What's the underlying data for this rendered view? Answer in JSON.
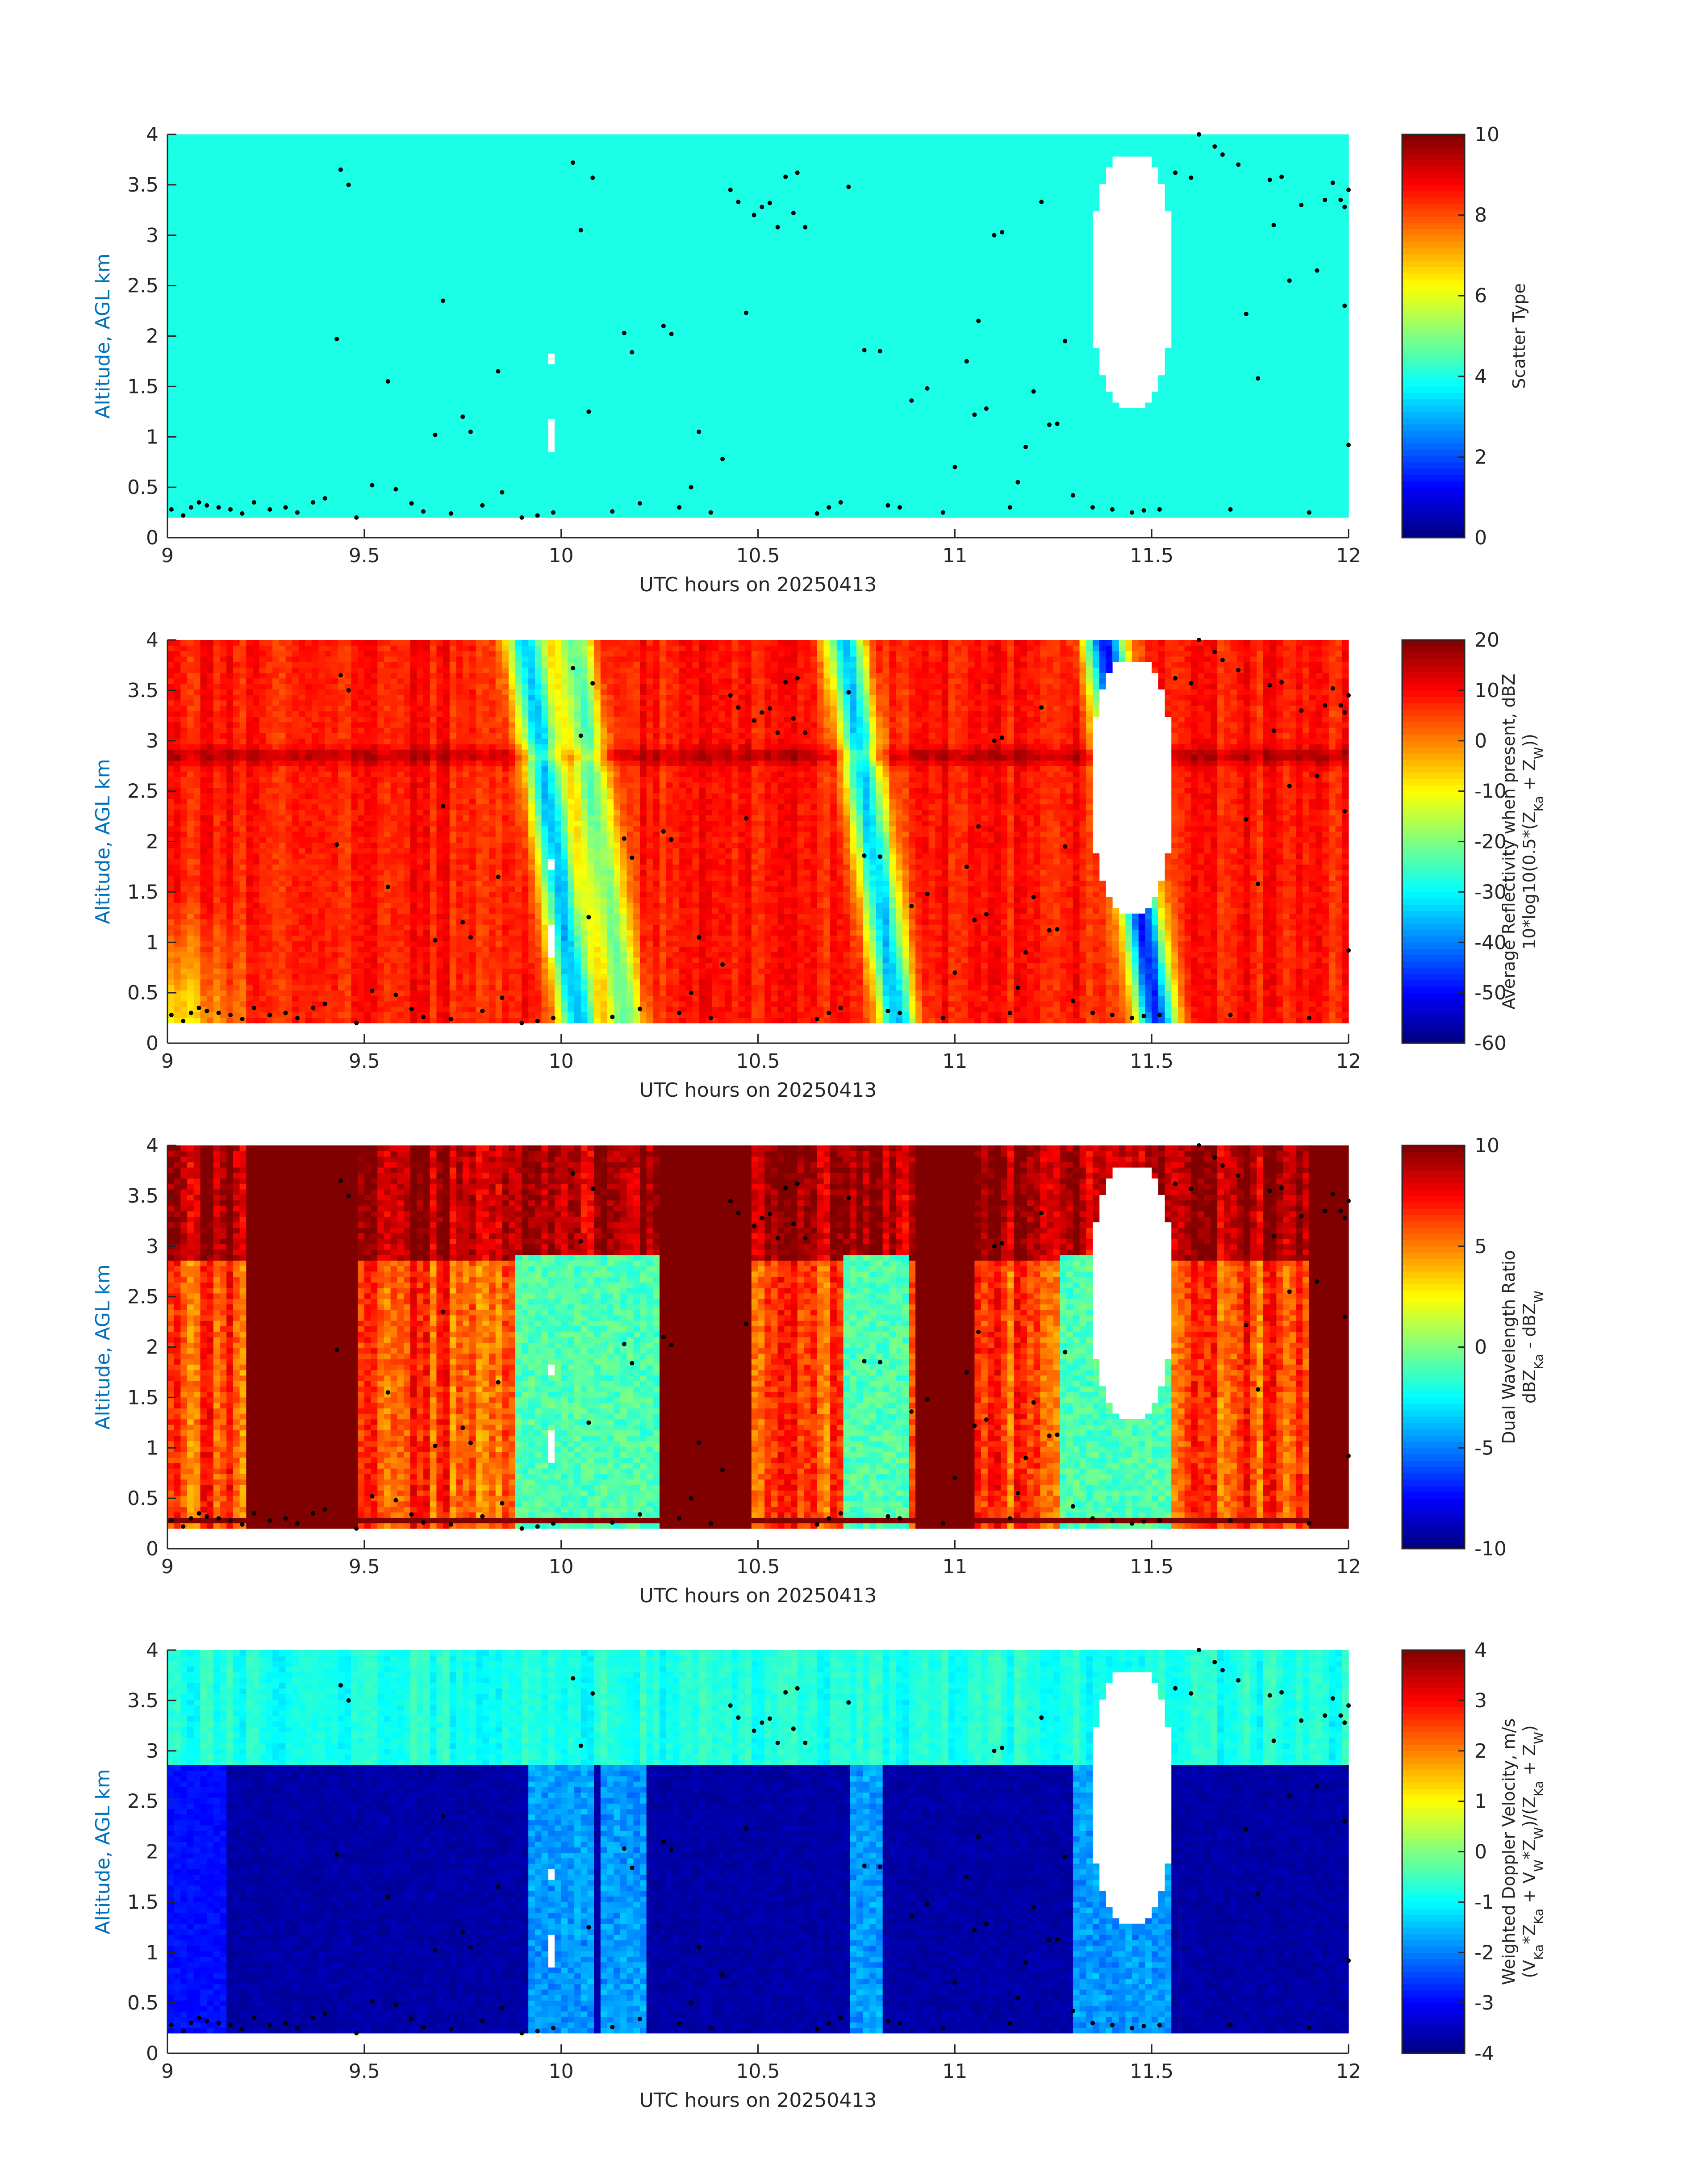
{
  "chart_data": [
    {
      "type": "heatmap",
      "panel": "scatter-type",
      "xlabel": "UTC hours on 20250413",
      "ylabel": "Altitude, AGL km",
      "x_ticks": [
        "9",
        "9.5",
        "10",
        "10.5",
        "11",
        "11.5",
        "12"
      ],
      "y_ticks": [
        "0",
        "0.5",
        "1",
        "1.5",
        "2",
        "2.5",
        "3",
        "3.5",
        "4"
      ],
      "xlim": [
        9,
        12
      ],
      "ylim": [
        0,
        4
      ],
      "colorbar": {
        "label_lines": [
          "Scatter Type"
        ],
        "ticks": [
          "0",
          "2",
          "4",
          "6",
          "8",
          "10"
        ],
        "range": [
          0,
          10
        ],
        "colormap": "jet"
      },
      "dominant_value": 4.0
    },
    {
      "type": "heatmap",
      "panel": "average-reflectivity",
      "xlabel": "UTC hours on 20250413",
      "ylabel": "Altitude, AGL km",
      "x_ticks": [
        "9",
        "9.5",
        "10",
        "10.5",
        "11",
        "11.5",
        "12"
      ],
      "y_ticks": [
        "0",
        "0.5",
        "1",
        "1.5",
        "2",
        "2.5",
        "3",
        "3.5",
        "4"
      ],
      "xlim": [
        9,
        12
      ],
      "ylim": [
        0,
        4
      ],
      "colorbar": {
        "label_lines": [
          "Average Reflectivity when present, dBZ",
          "10*log10(0.5*(Z_Ka + Z_W))"
        ],
        "ticks": [
          "-60",
          "-50",
          "-40",
          "-30",
          "-20",
          "-10",
          "0",
          "10",
          "20"
        ],
        "range": [
          -60,
          20
        ],
        "colormap": "jet"
      },
      "background_value": 8,
      "bright_band_value": 15,
      "low_reflectivity_bands": [
        {
          "center_hours": 9.98,
          "value": -35
        },
        {
          "center_hours": 10.1,
          "value": -22
        },
        {
          "center_hours": 10.79,
          "value": -35
        },
        {
          "center_hours": 11.45,
          "value": -48
        }
      ]
    },
    {
      "type": "heatmap",
      "panel": "dual-wavelength-ratio",
      "xlabel": "UTC hours on 20250413",
      "ylabel": "Altitude, AGL km",
      "x_ticks": [
        "9",
        "9.5",
        "10",
        "10.5",
        "11",
        "11.5",
        "12"
      ],
      "y_ticks": [
        "0",
        "0.5",
        "1",
        "1.5",
        "2",
        "2.5",
        "3",
        "3.5",
        "4"
      ],
      "xlim": [
        9,
        12
      ],
      "ylim": [
        0,
        4
      ],
      "colorbar": {
        "label_lines": [
          "Dual Wavelength Ratio",
          "dBZ_Ka - dBZ_W"
        ],
        "ticks": [
          "-10",
          "-5",
          "0",
          "5",
          "10"
        ],
        "range": [
          -10,
          10
        ],
        "colormap": "jet"
      },
      "background_value": 6,
      "high_value": 10,
      "low_value": -1
    },
    {
      "type": "heatmap",
      "panel": "weighted-doppler-velocity",
      "xlabel": "UTC hours on 20250413",
      "ylabel": "Altitude, AGL km",
      "x_ticks": [
        "9",
        "9.5",
        "10",
        "10.5",
        "11",
        "11.5",
        "12"
      ],
      "y_ticks": [
        "0",
        "0.5",
        "1",
        "1.5",
        "2",
        "2.5",
        "3",
        "3.5",
        "4"
      ],
      "xlim": [
        9,
        12
      ],
      "ylim": [
        0,
        4
      ],
      "colorbar": {
        "label_lines": [
          "Weighted Doppler Velocity, m/s",
          "(V_Ka*Z_Ka + V_W*Z_W)/(Z_Ka + Z_W)"
        ],
        "ticks": [
          "-4",
          "-3",
          "-2",
          "-1",
          "0",
          "1",
          "2",
          "3",
          "4"
        ],
        "range": [
          -4,
          4
        ],
        "colormap": "jet"
      },
      "above_melting_value": -0.8,
      "below_melting_value": -3.7,
      "melting_layer_km": 2.85
    }
  ],
  "overlay_points": [
    [
      9.01,
      0.28
    ],
    [
      9.04,
      0.22
    ],
    [
      9.06,
      0.3
    ],
    [
      9.08,
      0.35
    ],
    [
      9.1,
      0.32
    ],
    [
      9.13,
      0.3
    ],
    [
      9.16,
      0.28
    ],
    [
      9.19,
      0.24
    ],
    [
      9.22,
      0.35
    ],
    [
      9.26,
      0.28
    ],
    [
      9.3,
      0.3
    ],
    [
      9.33,
      0.25
    ],
    [
      9.37,
      0.35
    ],
    [
      9.4,
      0.39
    ],
    [
      9.43,
      1.97
    ],
    [
      9.44,
      3.65
    ],
    [
      9.46,
      3.5
    ],
    [
      9.48,
      0.2
    ],
    [
      9.52,
      0.52
    ],
    [
      9.56,
      1.55
    ],
    [
      9.58,
      0.48
    ],
    [
      9.62,
      0.34
    ],
    [
      9.65,
      0.26
    ],
    [
      9.68,
      1.02
    ],
    [
      9.7,
      2.35
    ],
    [
      9.72,
      0.24
    ],
    [
      9.75,
      1.2
    ],
    [
      9.77,
      1.05
    ],
    [
      9.8,
      0.32
    ],
    [
      9.84,
      1.65
    ],
    [
      9.85,
      0.45
    ],
    [
      9.9,
      0.2
    ],
    [
      9.94,
      0.22
    ],
    [
      9.98,
      0.25
    ],
    [
      10.03,
      3.72
    ],
    [
      10.05,
      3.05
    ],
    [
      10.07,
      1.25
    ],
    [
      10.08,
      3.57
    ],
    [
      10.13,
      0.26
    ],
    [
      10.16,
      2.03
    ],
    [
      10.18,
      1.84
    ],
    [
      10.2,
      0.34
    ],
    [
      10.26,
      2.1
    ],
    [
      10.28,
      2.02
    ],
    [
      10.3,
      0.3
    ],
    [
      10.33,
      0.5
    ],
    [
      10.35,
      1.05
    ],
    [
      10.38,
      0.25
    ],
    [
      10.41,
      0.78
    ],
    [
      10.43,
      3.45
    ],
    [
      10.45,
      3.33
    ],
    [
      10.47,
      2.23
    ],
    [
      10.49,
      3.2
    ],
    [
      10.51,
      3.28
    ],
    [
      10.53,
      3.32
    ],
    [
      10.55,
      3.08
    ],
    [
      10.57,
      3.58
    ],
    [
      10.59,
      3.22
    ],
    [
      10.6,
      3.62
    ],
    [
      10.62,
      3.08
    ],
    [
      10.65,
      0.24
    ],
    [
      10.68,
      0.3
    ],
    [
      10.71,
      0.35
    ],
    [
      10.73,
      3.48
    ],
    [
      10.77,
      1.86
    ],
    [
      10.81,
      1.85
    ],
    [
      10.83,
      0.32
    ],
    [
      10.86,
      0.3
    ],
    [
      10.89,
      1.36
    ],
    [
      10.93,
      1.48
    ],
    [
      10.97,
      0.25
    ],
    [
      11.0,
      0.7
    ],
    [
      11.03,
      1.75
    ],
    [
      11.05,
      1.22
    ],
    [
      11.06,
      2.15
    ],
    [
      11.08,
      1.28
    ],
    [
      11.1,
      3.0
    ],
    [
      11.12,
      3.03
    ],
    [
      11.14,
      0.3
    ],
    [
      11.16,
      0.55
    ],
    [
      11.18,
      0.9
    ],
    [
      11.2,
      1.45
    ],
    [
      11.22,
      3.33
    ],
    [
      11.24,
      1.12
    ],
    [
      11.26,
      1.13
    ],
    [
      11.28,
      1.95
    ],
    [
      11.3,
      0.42
    ],
    [
      11.35,
      0.3
    ],
    [
      11.4,
      0.28
    ],
    [
      11.45,
      0.25
    ],
    [
      11.48,
      0.27
    ],
    [
      11.52,
      0.28
    ],
    [
      11.56,
      3.62
    ],
    [
      11.6,
      3.57
    ],
    [
      11.62,
      4.0
    ],
    [
      11.66,
      3.88
    ],
    [
      11.68,
      3.8
    ],
    [
      11.7,
      0.28
    ],
    [
      11.72,
      3.7
    ],
    [
      11.74,
      2.22
    ],
    [
      11.77,
      1.58
    ],
    [
      11.8,
      3.55
    ],
    [
      11.81,
      3.1
    ],
    [
      11.83,
      3.58
    ],
    [
      11.85,
      2.55
    ],
    [
      11.88,
      3.3
    ],
    [
      11.9,
      0.25
    ],
    [
      11.92,
      2.65
    ],
    [
      11.94,
      3.35
    ],
    [
      11.96,
      3.52
    ],
    [
      11.98,
      3.35
    ],
    [
      12.0,
      3.45
    ],
    [
      11.99,
      3.28
    ],
    [
      11.99,
      2.3
    ],
    [
      12.0,
      0.92
    ]
  ]
}
